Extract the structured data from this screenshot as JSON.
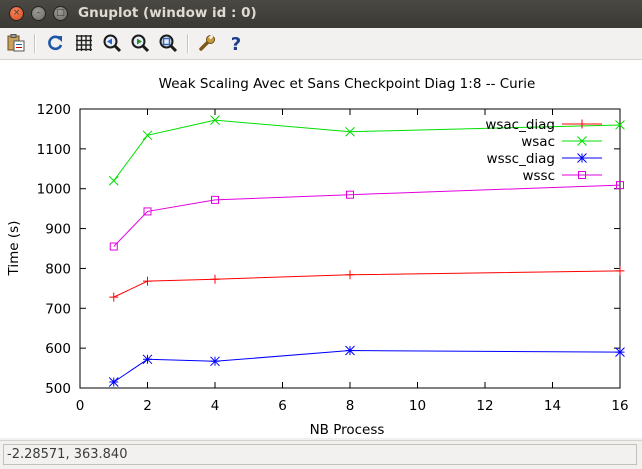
{
  "window": {
    "title": "Gnuplot (window id : 0)",
    "buttons": {
      "close": "×",
      "minimize": "–",
      "maximize": "□"
    }
  },
  "toolbar": {
    "items": [
      {
        "name": "copy-to-clipboard-button",
        "icon": "clipboard-icon"
      },
      {
        "name": "replot-button",
        "icon": "refresh-icon"
      },
      {
        "name": "grid-button",
        "icon": "grid-icon"
      },
      {
        "name": "zoom-previous-button",
        "icon": "zoom-previous-icon"
      },
      {
        "name": "zoom-next-button",
        "icon": "zoom-next-icon"
      },
      {
        "name": "unzoom-button",
        "icon": "zoom-fit-icon"
      },
      {
        "name": "preferences-button",
        "icon": "wrench-icon"
      },
      {
        "name": "help-button",
        "icon": "help-icon"
      }
    ]
  },
  "status": {
    "coords": "-2.28571,  363.840"
  },
  "chart_data": {
    "type": "line",
    "title": "Weak Scaling Avec et Sans Checkpoint Diag 1:8 -- Curie",
    "xlabel": "NB Process",
    "ylabel": "Time (s)",
    "xlim": [
      0,
      16
    ],
    "ylim": [
      500,
      1200
    ],
    "xticks": [
      0,
      2,
      4,
      6,
      8,
      10,
      12,
      14,
      16
    ],
    "yticks": [
      500,
      600,
      700,
      800,
      900,
      1000,
      1100,
      1200
    ],
    "grid": false,
    "legend_position": "top-right",
    "x": [
      1,
      2,
      4,
      8,
      16
    ],
    "series": [
      {
        "name": "wsac_diag",
        "color": "#ff0000",
        "marker": "plus",
        "values": [
          728,
          768,
          773,
          784,
          794
        ]
      },
      {
        "name": "wsac",
        "color": "#00e000",
        "marker": "cross",
        "values": [
          1020,
          1134,
          1172,
          1143,
          1160
        ]
      },
      {
        "name": "wssc_diag",
        "color": "#0000ff",
        "marker": "star",
        "values": [
          515,
          572,
          567,
          594,
          590
        ]
      },
      {
        "name": "wssc",
        "color": "#e000e0",
        "marker": "box",
        "values": [
          855,
          943,
          972,
          985,
          1009
        ]
      }
    ]
  }
}
